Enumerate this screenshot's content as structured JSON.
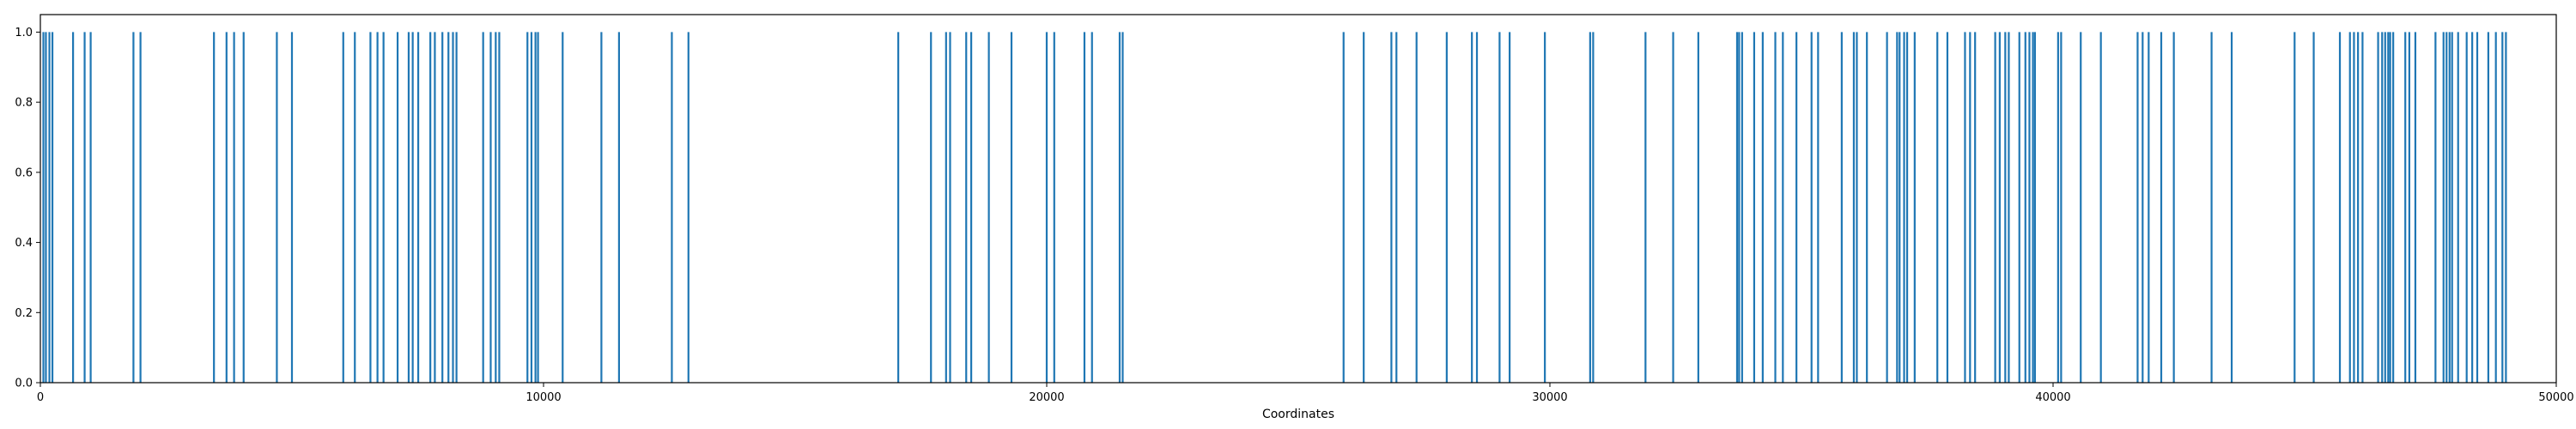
{
  "chart_data": {
    "type": "bar",
    "title": "",
    "xlabel": "Coordinates",
    "ylabel": "",
    "xlim": [
      0,
      50000
    ],
    "ylim": [
      0,
      1.05
    ],
    "grid": false,
    "x_ticks": [
      0,
      10000,
      20000,
      30000,
      40000,
      50000
    ],
    "x_tick_labels": [
      "0",
      "10000",
      "20000",
      "30000",
      "40000",
      "50000"
    ],
    "y_ticks": [
      0.0,
      0.2,
      0.4,
      0.6,
      0.8,
      1.0
    ],
    "y_tick_labels": [
      "0.0",
      "0.2",
      "0.4",
      "0.6",
      "0.8",
      "1.0"
    ],
    "bar_color": "#1f77b4",
    "bar_value": 1.0,
    "x": [
      60,
      110,
      180,
      240,
      650,
      880,
      1000,
      1850,
      1990,
      3450,
      3700,
      3850,
      4040,
      4700,
      5000,
      6020,
      6250,
      6560,
      6700,
      6820,
      7100,
      7320,
      7400,
      7510,
      7750,
      7840,
      7990,
      8110,
      8200,
      8270,
      8800,
      8950,
      9050,
      9120,
      9680,
      9760,
      9840,
      9890,
      10380,
      11150,
      11500,
      12550,
      12880,
      17050,
      17700,
      18000,
      18080,
      18400,
      18500,
      18850,
      19300,
      20000,
      20150,
      20750,
      20900,
      21450,
      21510,
      25900,
      26300,
      26850,
      26950,
      27350,
      27950,
      28450,
      28550,
      29000,
      29200,
      29900,
      30800,
      30860,
      31900,
      32450,
      32950,
      33720,
      33760,
      33820,
      34060,
      34230,
      34480,
      34630,
      34900,
      35200,
      35330,
      35800,
      36040,
      36100,
      36300,
      36700,
      36900,
      36950,
      37040,
      37100,
      37250,
      37700,
      37900,
      38250,
      38350,
      38450,
      38850,
      38940,
      39050,
      39120,
      39330,
      39450,
      39530,
      39600,
      39640,
      40100,
      40160,
      40550,
      40950,
      41680,
      41780,
      41900,
      42150,
      42400,
      43150,
      43550,
      44800,
      45180,
      45700,
      45900,
      45980,
      46060,
      46150,
      46460,
      46540,
      46600,
      46660,
      46700,
      46760,
      47000,
      47080,
      47200,
      47600,
      47760,
      47820,
      47880,
      47930,
      48050,
      48220,
      48330,
      48430,
      48650,
      48800,
      48930,
      49000
    ]
  }
}
